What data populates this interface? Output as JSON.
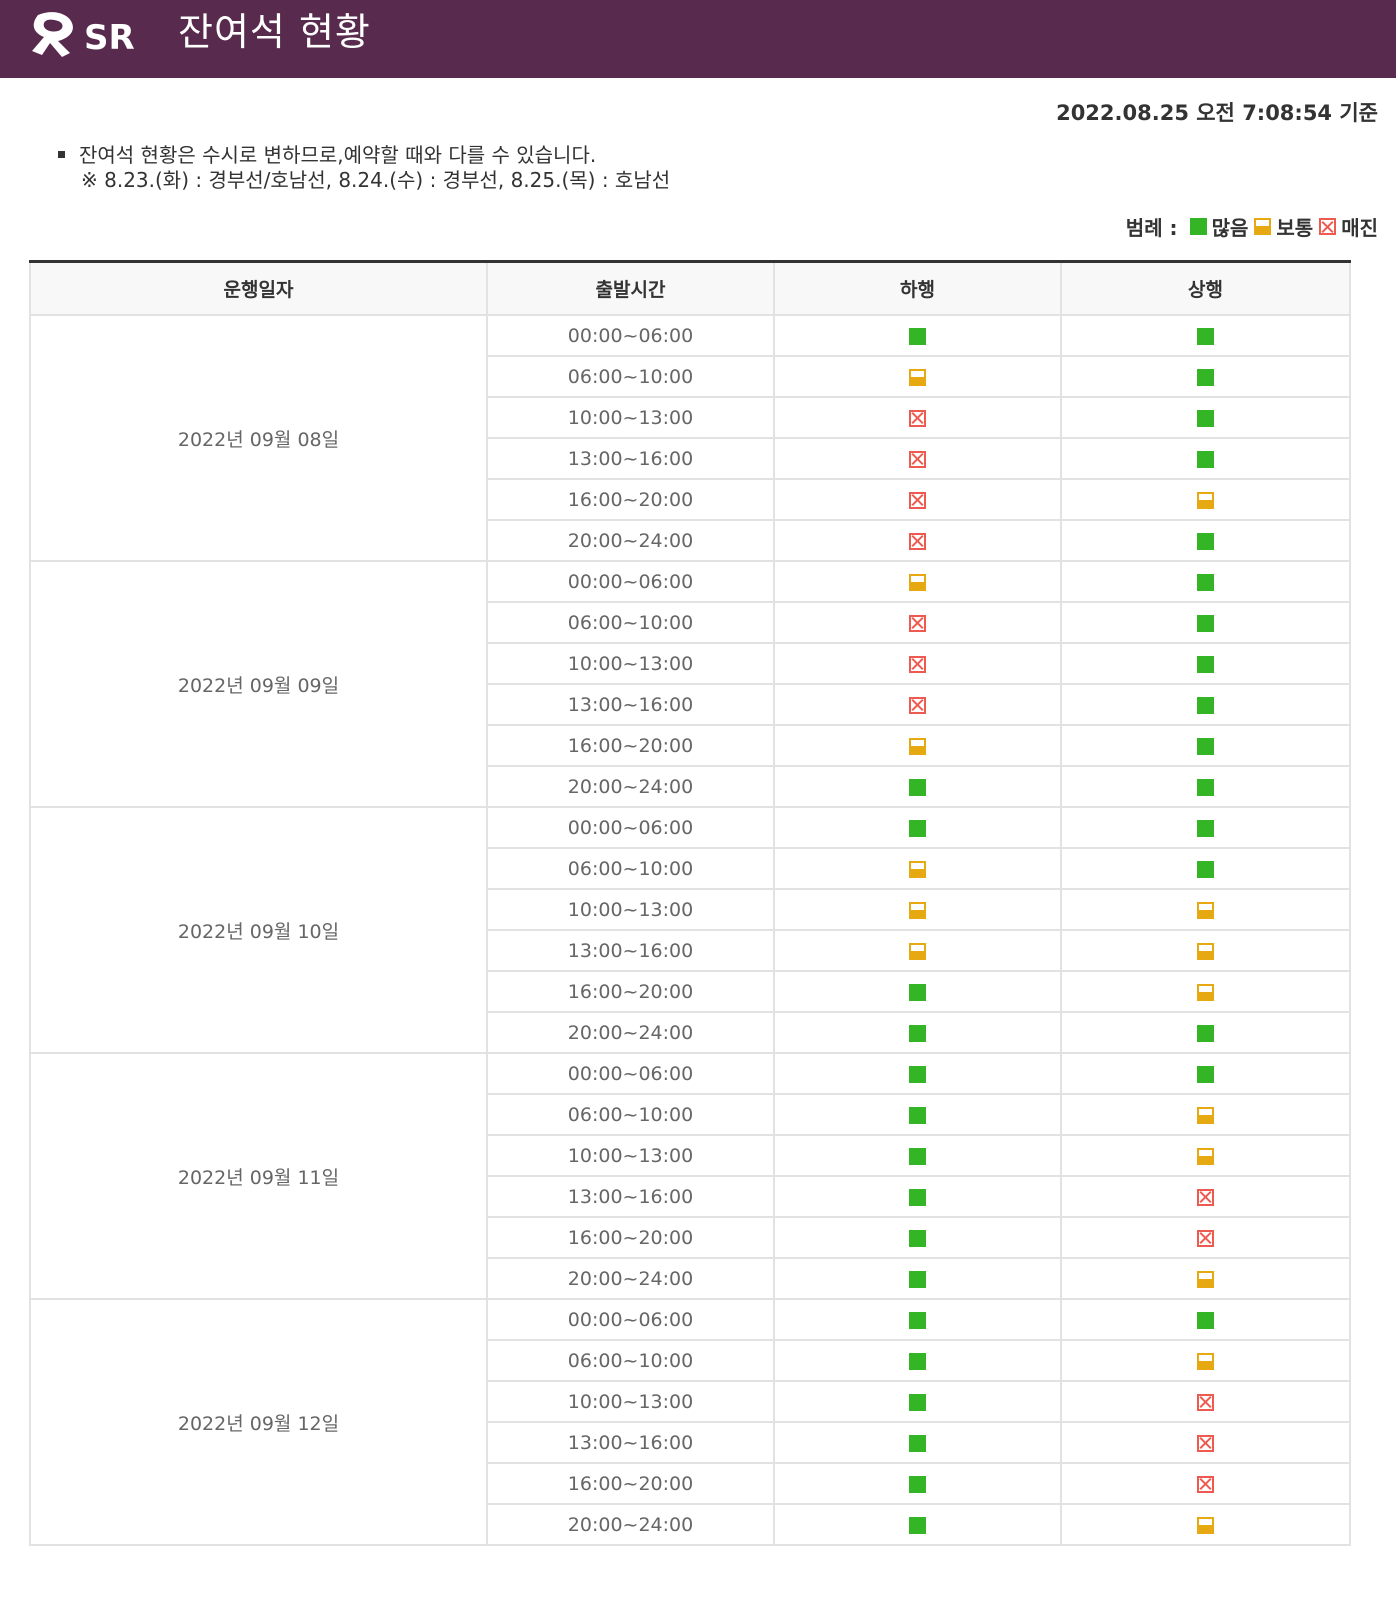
{
  "header": {
    "logo_text": "SR",
    "title": "잔여석 현황",
    "bg_color": "#582a4e"
  },
  "timestamp": "2022.08.25 오전 7:08:54 기준",
  "notice": {
    "line1": "잔여석 현황은 수시로 변하므로,예약할 때와 다를 수 있습니다.",
    "line2": "※ 8.23.(화) : 경부선/호남선, 8.24.(수) : 경부선, 8.25.(목) : 호남선"
  },
  "legend": {
    "label": "범례 :",
    "many": "많음",
    "normal": "보통",
    "sold": "매진",
    "colors": {
      "many": "#33b526",
      "normal": "#e6a911",
      "sold": "#ee5a4f"
    }
  },
  "table": {
    "headers": [
      "운행일자",
      "출발시간",
      "하행",
      "상행"
    ],
    "time_slots": [
      "00:00~06:00",
      "06:00~10:00",
      "10:00~13:00",
      "13:00~16:00",
      "16:00~20:00",
      "20:00~24:00"
    ],
    "days": [
      {
        "date": "2022년 09월 08일",
        "down": [
          "many",
          "normal",
          "sold",
          "sold",
          "sold",
          "sold"
        ],
        "up": [
          "many",
          "many",
          "many",
          "many",
          "normal",
          "many"
        ]
      },
      {
        "date": "2022년 09월 09일",
        "down": [
          "normal",
          "sold",
          "sold",
          "sold",
          "normal",
          "many"
        ],
        "up": [
          "many",
          "many",
          "many",
          "many",
          "many",
          "many"
        ]
      },
      {
        "date": "2022년 09월 10일",
        "down": [
          "many",
          "normal",
          "normal",
          "normal",
          "many",
          "many"
        ],
        "up": [
          "many",
          "many",
          "normal",
          "normal",
          "normal",
          "many"
        ]
      },
      {
        "date": "2022년 09월 11일",
        "down": [
          "many",
          "many",
          "many",
          "many",
          "many",
          "many"
        ],
        "up": [
          "many",
          "normal",
          "normal",
          "sold",
          "sold",
          "normal"
        ]
      },
      {
        "date": "2022년 09월 12일",
        "down": [
          "many",
          "many",
          "many",
          "many",
          "many",
          "many"
        ],
        "up": [
          "many",
          "normal",
          "sold",
          "sold",
          "sold",
          "normal"
        ]
      }
    ]
  }
}
